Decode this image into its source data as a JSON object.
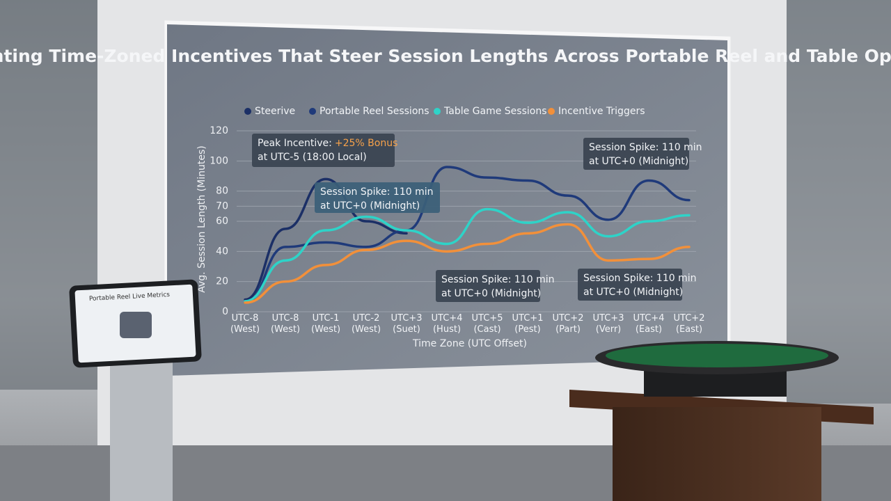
{
  "chart_data": {
    "type": "line",
    "title": "Incenting Time-Zoned Incentives That Steer Session Lengths Across Portable Reel and Table Options",
    "x_label": "Time Zone (UTC Offset)",
    "y_label": "Avg. Session Length (Minutes)",
    "categories": [
      "UTC-8\n(West)",
      "UTC-8\n(West)",
      "UTC-1\n(West)",
      "UTC-2\n(West)",
      "UTC+3\n(Suet)",
      "UTC+4\n(Hust)",
      "UTC+5\n(Cast)",
      "UTC+1\n(Pest)",
      "UTC+2\n(Part)",
      "UTC+3\n(Verr)",
      "UTC+4\n(East)",
      "UTC+2\n(East)"
    ],
    "series": [
      {
        "name": "Steerive",
        "color": "#1b2f66",
        "values": [
          8,
          55,
          88,
          60,
          52,
          null,
          null,
          null,
          null,
          null,
          null,
          null
        ]
      },
      {
        "name": "Portable Reel Sessions",
        "color": "#1f3a7a",
        "values": [
          6,
          43,
          46,
          43,
          54,
          96,
          89,
          87,
          77,
          61,
          87,
          74
        ]
      },
      {
        "name": "Table Game Sessions",
        "color": "#2ed3c8",
        "values": [
          7,
          34,
          54,
          63,
          54,
          45,
          68,
          59,
          66,
          50,
          60,
          64
        ]
      },
      {
        "name": "Incentive Triggers",
        "color": "#f2903a",
        "values": [
          6,
          20,
          31,
          41,
          47,
          40,
          45,
          52,
          58,
          34,
          35,
          43
        ]
      }
    ],
    "ylim": [
      0,
      120
    ],
    "yticks": [
      0,
      20,
      40,
      60,
      70,
      80,
      100,
      120
    ],
    "grid": true,
    "annotations": [
      {
        "text_1": "Peak Incentive:",
        "highlight": "+25% Bonus",
        "text_2": "at UTC-5 (18:00 Local)"
      },
      {
        "text_1": "Session Spike: 110 min",
        "text_2": "at UTC+0 (Midnight)"
      },
      {
        "text_1": "Session Spike: 110 min",
        "text_2": "at UTC+0 (Midnight)"
      },
      {
        "text_1": "Session Spike: 110 min",
        "text_2": "at UTC+0 (Midnight)"
      },
      {
        "text_1": "Session Spike: 110 min",
        "text_2": "at UTC+0 (Midnight)"
      }
    ],
    "tablet_title": "Portable Reel Live Metrics"
  }
}
